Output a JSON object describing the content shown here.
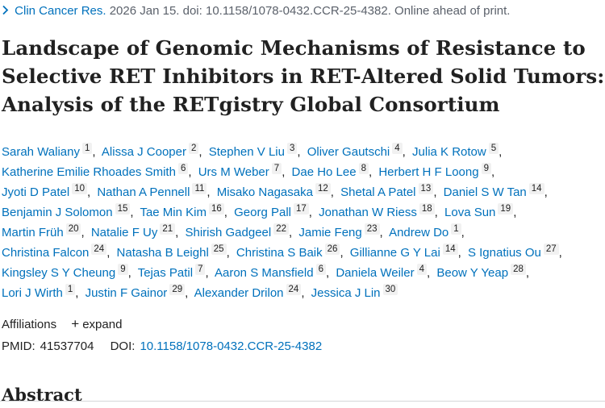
{
  "citation": {
    "journal": "Clin Cancer Res.",
    "details": "2026 Jan 15. doi: 10.1158/1078-0432.CCR-25-4382. Online ahead of print.",
    "icon": "chevron-right-icon"
  },
  "title": "Landscape of Genomic Mechanisms of Resistance to Selective RET Inhibitors in RET-Altered Solid Tumors: Analysis of the RETgistry Global Consortium",
  "authors": [
    {
      "name": "Sarah Waliany",
      "aff": "1"
    },
    {
      "name": "Alissa J Cooper",
      "aff": "2"
    },
    {
      "name": "Stephen V Liu",
      "aff": "3"
    },
    {
      "name": "Oliver Gautschi",
      "aff": "4"
    },
    {
      "name": "Julia K Rotow",
      "aff": "5"
    },
    {
      "name": "Katherine Emilie Rhoades Smith",
      "aff": "6"
    },
    {
      "name": "Urs M Weber",
      "aff": "7"
    },
    {
      "name": "Dae Ho Lee",
      "aff": "8"
    },
    {
      "name": "Herbert H F Loong",
      "aff": "9"
    },
    {
      "name": "Jyoti D Patel",
      "aff": "10"
    },
    {
      "name": "Nathan A Pennell",
      "aff": "11"
    },
    {
      "name": "Misako Nagasaka",
      "aff": "12"
    },
    {
      "name": "Shetal A Patel",
      "aff": "13"
    },
    {
      "name": "Daniel S W Tan",
      "aff": "14"
    },
    {
      "name": "Benjamin J Solomon",
      "aff": "15"
    },
    {
      "name": "Tae Min Kim",
      "aff": "16"
    },
    {
      "name": "Georg Pall",
      "aff": "17"
    },
    {
      "name": "Jonathan W Riess",
      "aff": "18"
    },
    {
      "name": "Lova Sun",
      "aff": "19"
    },
    {
      "name": "Martin Früh",
      "aff": "20"
    },
    {
      "name": "Natalie F Uy",
      "aff": "21"
    },
    {
      "name": "Shirish Gadgeel",
      "aff": "22"
    },
    {
      "name": "Jamie Feng",
      "aff": "23"
    },
    {
      "name": "Andrew Do",
      "aff": "1"
    },
    {
      "name": "Christina Falcon",
      "aff": "24"
    },
    {
      "name": "Natasha B Leighl",
      "aff": "25"
    },
    {
      "name": "Christina S Baik",
      "aff": "26"
    },
    {
      "name": "Gillianne G Y Lai",
      "aff": "14"
    },
    {
      "name": "S Ignatius Ou",
      "aff": "27"
    },
    {
      "name": "Kingsley S Y Cheung",
      "aff": "9"
    },
    {
      "name": "Tejas Patil",
      "aff": "7"
    },
    {
      "name": "Aaron S Mansfield",
      "aff": "6"
    },
    {
      "name": "Daniela Weiler",
      "aff": "4"
    },
    {
      "name": "Beow Y Yeap",
      "aff": "28"
    },
    {
      "name": "Lori J Wirth",
      "aff": "1"
    },
    {
      "name": "Justin F Gainor",
      "aff": "29"
    },
    {
      "name": "Alexander Drilon",
      "aff": "24"
    },
    {
      "name": "Jessica J Lin",
      "aff": "30"
    }
  ],
  "author_lines": [
    [
      0,
      1,
      2,
      3,
      4
    ],
    [
      5,
      6,
      7,
      8
    ],
    [
      9,
      10,
      11,
      12,
      13
    ],
    [
      14,
      15,
      16,
      17,
      18
    ],
    [
      19,
      20,
      21,
      22,
      23
    ],
    [
      24,
      25,
      26,
      27,
      28
    ],
    [
      29,
      30,
      31,
      32,
      33
    ],
    [
      34,
      35,
      36,
      37
    ]
  ],
  "affiliations": {
    "label": "Affiliations",
    "expand_label": "expand",
    "expand_icon": "plus-icon"
  },
  "ids": {
    "pmid_label": "PMID:",
    "pmid": "41537704",
    "doi_label": "DOI:",
    "doi": "10.1158/1078-0432.CCR-25-4382"
  },
  "abstract_heading": "Abstract"
}
